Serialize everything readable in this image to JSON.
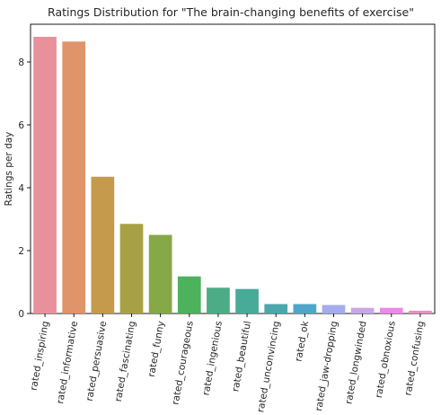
{
  "chart_data": {
    "type": "bar",
    "title": "Ratings Distribution for \"The brain-changing benefits of exercise\"",
    "xlabel": "",
    "ylabel": "Ratings per day",
    "ylim": [
      0,
      9.2
    ],
    "yticks": [
      0,
      2,
      4,
      6,
      8
    ],
    "grid": false,
    "legend": "none",
    "categories": [
      "rated_inspiring",
      "rated_informative",
      "rated_persuasive",
      "rated_fascinating",
      "rated_funny",
      "rated_courageous",
      "rated_ingenious",
      "rated_beautiful",
      "rated_unconvincing",
      "rated_ok",
      "rated_jaw-dropping",
      "rated_longwinded",
      "rated_obnoxious",
      "rated_confusing"
    ],
    "values": [
      8.8,
      8.65,
      4.35,
      2.85,
      2.5,
      1.18,
      0.82,
      0.78,
      0.3,
      0.3,
      0.27,
      0.18,
      0.18,
      0.09
    ],
    "colors": [
      "#e8919a",
      "#e0946a",
      "#c59a4c",
      "#a8a044",
      "#86a846",
      "#4cb25c",
      "#4bac85",
      "#48aa99",
      "#4aa7ac",
      "#4fa6c8",
      "#a3aded",
      "#c7a8e6",
      "#ea8ae6",
      "#ea8ec3"
    ]
  }
}
